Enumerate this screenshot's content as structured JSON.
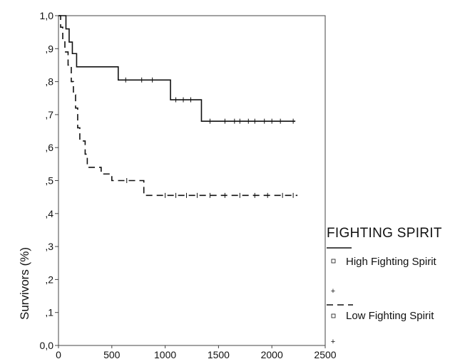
{
  "chart_data": {
    "type": "line",
    "chart_kind": "kaplan-meier survival curve",
    "title": "",
    "xlabel": "",
    "ylabel": "Survivors (%)",
    "xlim": [
      0,
      2500
    ],
    "ylim": [
      0,
      1
    ],
    "x_ticks": [
      "0",
      "500",
      "1000",
      "1500",
      "2000",
      "2500"
    ],
    "y_ticks": [
      "0,0",
      ",1",
      ",2",
      ",3",
      ",4",
      ",5",
      ",6",
      ",7",
      ",8",
      ",9",
      "1,0"
    ],
    "grid": false,
    "legend": {
      "title": "FIGHTING SPIRIT",
      "placement": "right",
      "entries": [
        "High Fighting Spirit",
        "Low Fighting Spirit"
      ]
    },
    "series": [
      {
        "name": "High Fighting Spirit",
        "line_style": "solid",
        "color": "#111111",
        "steps": [
          [
            0,
            1.0
          ],
          [
            70,
            0.96
          ],
          [
            100,
            0.92
          ],
          [
            130,
            0.885
          ],
          [
            170,
            0.845
          ],
          [
            560,
            0.805
          ],
          [
            1050,
            0.745
          ],
          [
            1340,
            0.68
          ],
          [
            2220,
            0.68
          ]
        ],
        "censored_x": [
          630,
          780,
          880,
          1100,
          1170,
          1240,
          1420,
          1560,
          1650,
          1700,
          1780,
          1840,
          1930,
          2000,
          2080,
          2200
        ]
      },
      {
        "name": "Low Fighting Spirit",
        "line_style": "dashed",
        "color": "#111111",
        "steps": [
          [
            0,
            1.0
          ],
          [
            20,
            0.965
          ],
          [
            40,
            0.925
          ],
          [
            60,
            0.89
          ],
          [
            90,
            0.85
          ],
          [
            120,
            0.8
          ],
          [
            140,
            0.76
          ],
          [
            160,
            0.72
          ],
          [
            180,
            0.66
          ],
          [
            200,
            0.62
          ],
          [
            250,
            0.58
          ],
          [
            270,
            0.54
          ],
          [
            400,
            0.52
          ],
          [
            500,
            0.5
          ],
          [
            800,
            0.455
          ],
          [
            2240,
            0.455
          ]
        ],
        "censored_x": [
          640,
          1000,
          1100,
          1200,
          1300,
          1420,
          1560,
          1700,
          1840,
          1960,
          2100,
          2200
        ]
      }
    ]
  }
}
